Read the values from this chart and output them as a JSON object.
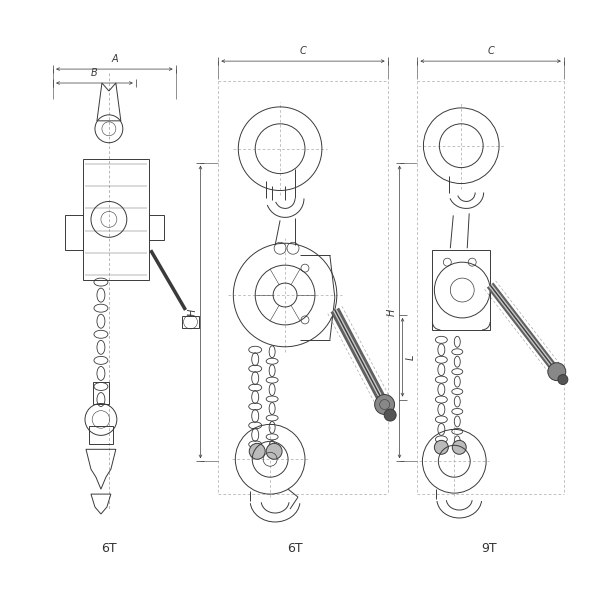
{
  "fig_width": 6.0,
  "fig_height": 6.0,
  "dpi": 100,
  "bg_color": "#ffffff",
  "lc": "#3a3a3a",
  "lc_light": "#888888",
  "lw_main": 0.7,
  "lw_dim": 0.5,
  "lw_thin": 0.4,
  "panel_labels": [
    "6T",
    "9T"
  ],
  "dim_labels": [
    "A",
    "B",
    "C",
    "H",
    "L"
  ],
  "label_fontsize": 9,
  "dim_fontsize": 7,
  "xlim": [
    0,
    600
  ],
  "ylim": [
    0,
    600
  ]
}
